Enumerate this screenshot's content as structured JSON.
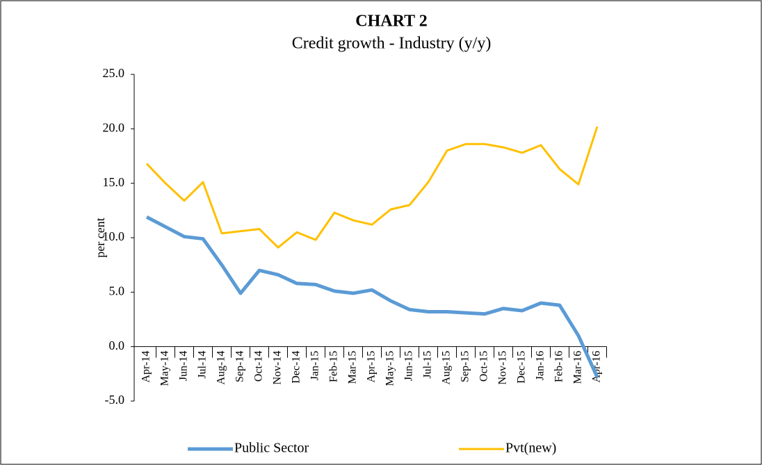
{
  "chart_data": {
    "type": "line",
    "title": "CHART 2",
    "subtitle": "Credit growth - Industry (y/y)",
    "y_label": "per cent",
    "categories": [
      "Apr-14",
      "May-14",
      "Jun-14",
      "Jul-14",
      "Aug-14",
      "Sep-14",
      "Oct-14",
      "Nov-14",
      "Dec-14",
      "Jan-15",
      "Feb-15",
      "Mar-15",
      "Apr-15",
      "May-15",
      "Jun-15",
      "Jul-15",
      "Aug-15",
      "Sep-15",
      "Oct-15",
      "Nov-15",
      "Dec-15",
      "Jan-16",
      "Feb-16",
      "Mar-16",
      "Apr-16"
    ],
    "series": [
      {
        "name": "Public Sector",
        "color": "#5b9bd5",
        "values": [
          11.9,
          11.0,
          10.1,
          9.9,
          7.5,
          4.9,
          7.0,
          6.6,
          5.8,
          5.7,
          5.1,
          4.9,
          5.2,
          4.2,
          3.4,
          3.2,
          3.2,
          3.1,
          3.0,
          3.5,
          3.3,
          4.0,
          3.8,
          1.0,
          -2.8
        ]
      },
      {
        "name": "Pvt(new)",
        "color": "#ffc000",
        "values": [
          16.8,
          15.0,
          13.4,
          15.1,
          10.4,
          10.6,
          10.8,
          9.1,
          10.5,
          9.8,
          12.3,
          11.6,
          11.2,
          12.6,
          13.0,
          15.1,
          18.0,
          18.6,
          18.6,
          18.3,
          17.8,
          18.5,
          16.3,
          14.9,
          20.2
        ]
      }
    ],
    "ylim": [
      -5,
      25
    ],
    "yticks": [
      {
        "value": -5,
        "label": "-5.0"
      },
      {
        "value": 0,
        "label": "0.0"
      },
      {
        "value": 5,
        "label": "5.0"
      },
      {
        "value": 10,
        "label": "10.0"
      },
      {
        "value": 15,
        "label": "15.0"
      },
      {
        "value": 20,
        "label": "20.0"
      },
      {
        "value": 25,
        "label": "25.0"
      }
    ],
    "legend": "bottom"
  }
}
